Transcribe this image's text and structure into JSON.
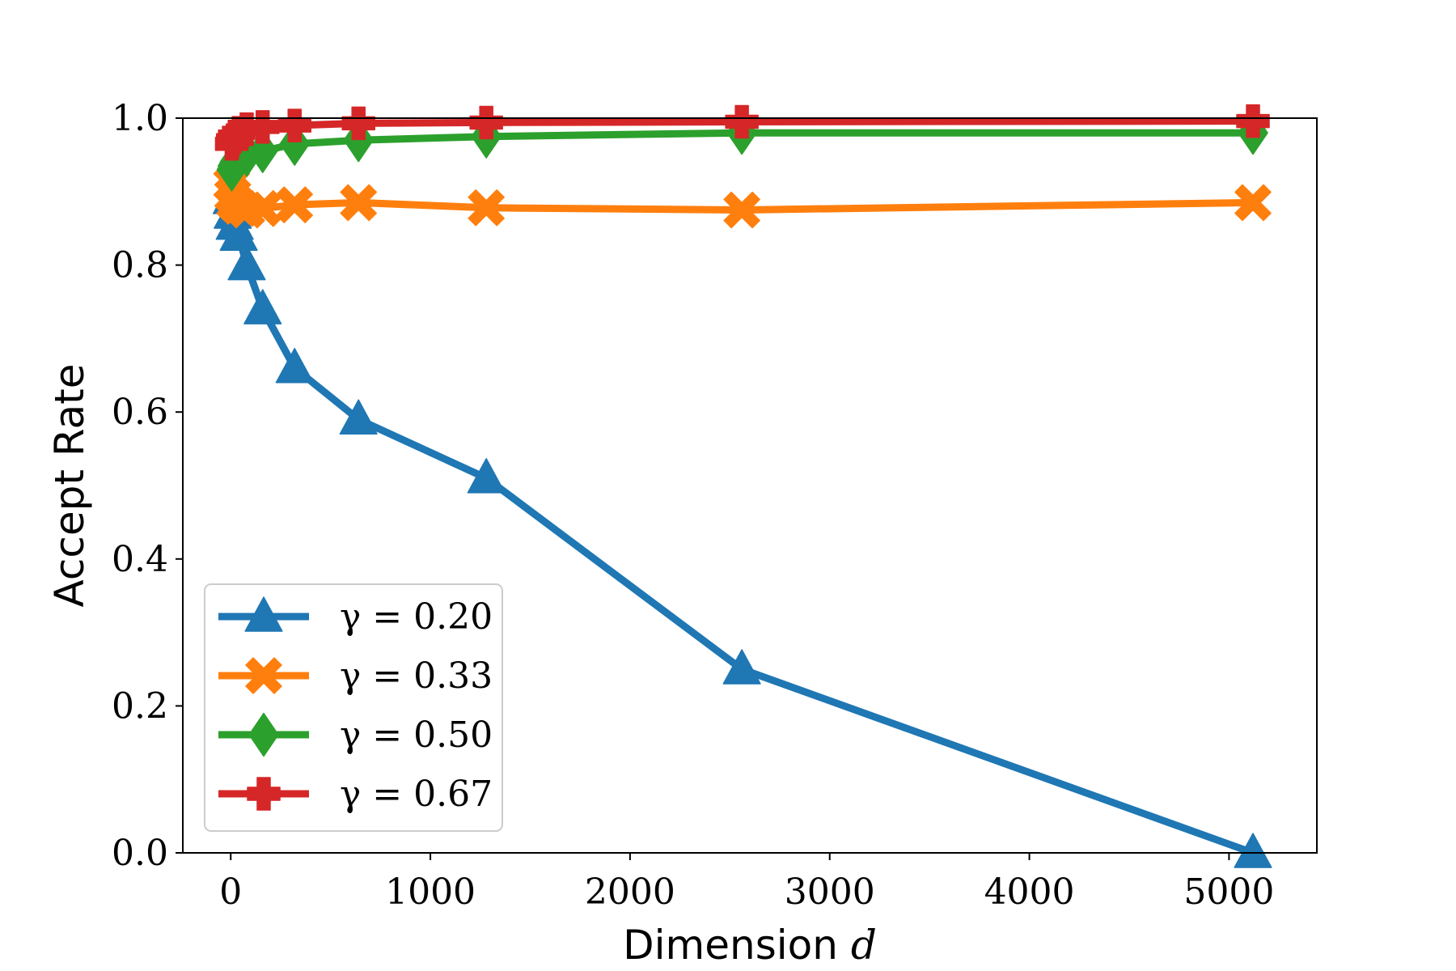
{
  "chart_data": {
    "type": "line",
    "xlabel": "Dimension",
    "xlabel_var": "d",
    "ylabel": "Accept Rate",
    "xlim": [
      -240,
      5440
    ],
    "ylim": [
      0.0,
      1.0
    ],
    "xticks": [
      0,
      1000,
      2000,
      3000,
      4000,
      5000
    ],
    "xtick_labels": [
      "0",
      "1000",
      "2000",
      "3000",
      "4000",
      "5000"
    ],
    "yticks": [
      0.0,
      0.2,
      0.4,
      0.6,
      0.8,
      1.0
    ],
    "ytick_labels": [
      "0.0",
      "0.2",
      "0.4",
      "0.6",
      "0.8",
      "1.0"
    ],
    "grid": false,
    "legend_position": "lower-left",
    "x": [
      5,
      10,
      20,
      40,
      80,
      160,
      320,
      640,
      1280,
      2560,
      5120
    ],
    "series": [
      {
        "name": "γ = 0.20",
        "color": "#1f77b4",
        "marker": "triangle-up",
        "values": [
          0.89,
          0.87,
          0.855,
          0.84,
          0.8,
          0.74,
          0.66,
          0.59,
          0.51,
          0.25,
          0.0
        ]
      },
      {
        "name": "γ = 0.33",
        "color": "#ff7f0e",
        "marker": "x-filled",
        "values": [
          0.91,
          0.895,
          0.885,
          0.88,
          0.875,
          0.877,
          0.882,
          0.885,
          0.878,
          0.875,
          0.885
        ]
      },
      {
        "name": "γ = 0.50",
        "color": "#2ca02c",
        "marker": "diamond-thin",
        "values": [
          0.93,
          0.935,
          0.94,
          0.945,
          0.95,
          0.955,
          0.965,
          0.97,
          0.975,
          0.98,
          0.98
        ]
      },
      {
        "name": "γ = 0.67",
        "color": "#d62728",
        "marker": "plus-filled",
        "values": [
          0.965,
          0.97,
          0.975,
          0.98,
          0.985,
          0.988,
          0.99,
          0.993,
          0.994,
          0.995,
          0.996
        ]
      }
    ]
  }
}
